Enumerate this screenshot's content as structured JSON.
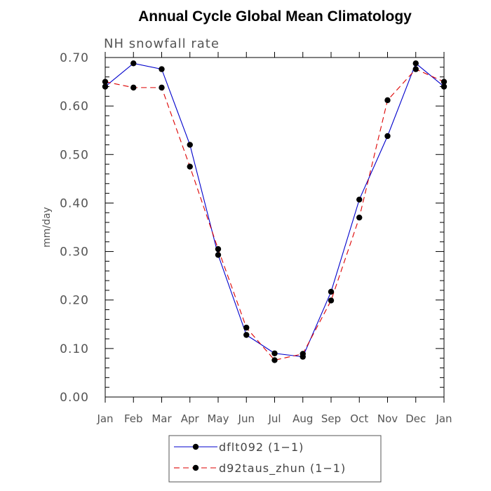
{
  "chart_data": {
    "type": "line",
    "title": "Annual Cycle Global Mean Climatology",
    "subtitle": "NH snowfall rate",
    "xlabel": "",
    "ylabel": "mm/day",
    "categories": [
      "Jan",
      "Feb",
      "Mar",
      "Apr",
      "May",
      "Jun",
      "Jul",
      "Aug",
      "Sep",
      "Oct",
      "Nov",
      "Dec",
      "Jan"
    ],
    "ylim": [
      0,
      0.7
    ],
    "yticks": [
      "0.00",
      "0.10",
      "0.20",
      "0.30",
      "0.40",
      "0.50",
      "0.60",
      "0.70"
    ],
    "series": [
      {
        "name": "dflt092",
        "legend_label": "dflt092 (1−1)",
        "color": "#0000cc",
        "dash": "solid",
        "values": [
          0.64,
          0.688,
          0.676,
          0.52,
          0.293,
          0.128,
          0.09,
          0.083,
          0.217,
          0.407,
          0.538,
          0.688,
          0.64
        ]
      },
      {
        "name": "d92taus_zhun",
        "legend_label": "d92taus_zhun (1−1)",
        "color": "#dd0000",
        "dash": "dashed",
        "values": [
          0.65,
          0.638,
          0.638,
          0.475,
          0.305,
          0.143,
          0.076,
          0.089,
          0.199,
          0.37,
          0.612,
          0.676,
          0.65
        ]
      }
    ]
  }
}
